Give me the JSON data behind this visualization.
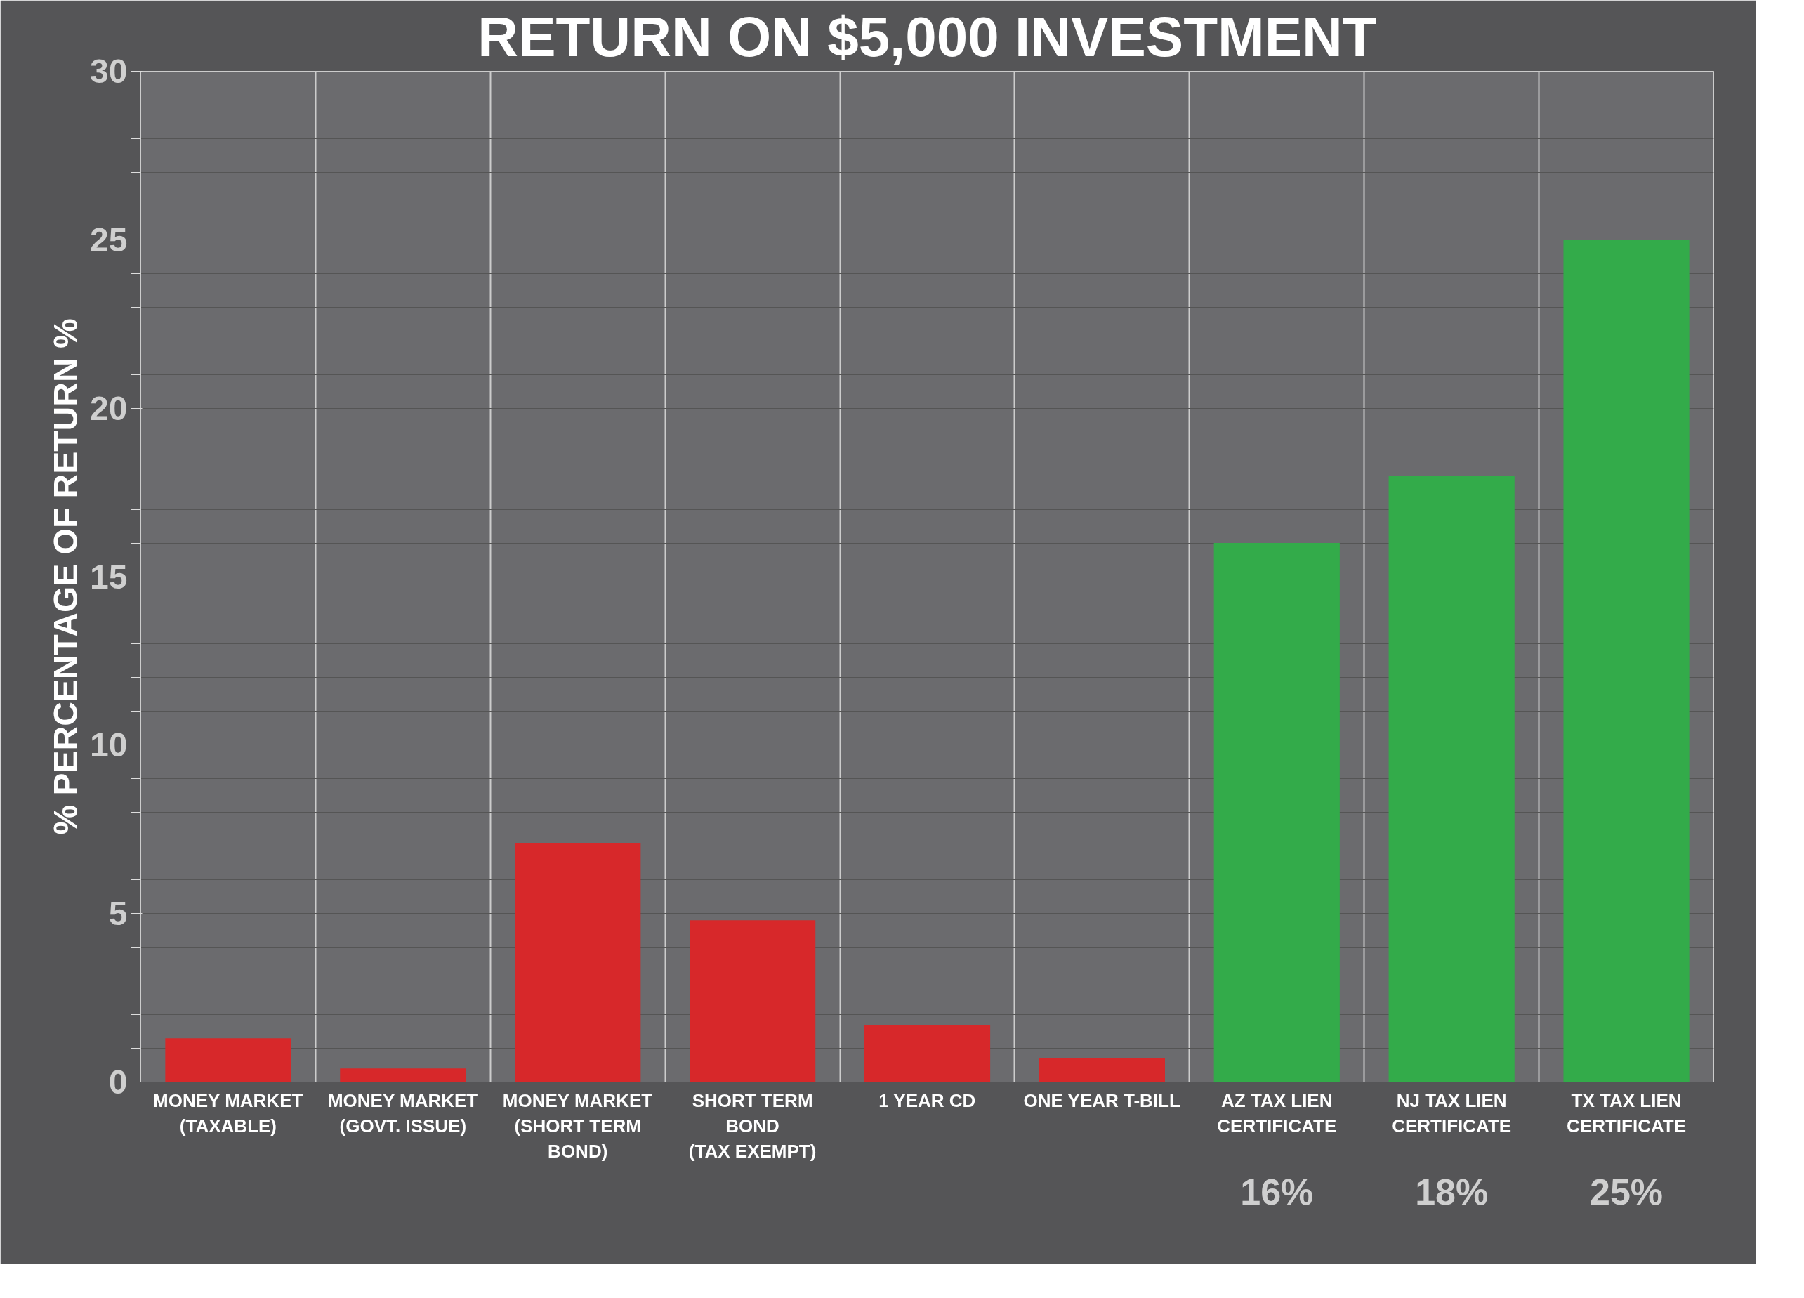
{
  "chart_data": {
    "type": "bar",
    "title": "RETURN ON $5,000 INVESTMENT",
    "ylabel": "% PERCENTAGE OF RETURN %",
    "categories": [
      "MONEY MARKET\n(TAXABLE)",
      "MONEY MARKET\n(GOVT. ISSUE)",
      "MONEY MARKET\n(SHORT TERM\nBOND)",
      "SHORT TERM\nBOND\n(TAX EXEMPT)",
      "1 YEAR CD",
      "ONE YEAR T-BILL",
      "AZ TAX LIEN\nCERTIFICATE",
      "NJ TAX LIEN\nCERTIFICATE",
      "TX TAX LIEN\nCERTIFICATE"
    ],
    "values": [
      1.3,
      0.4,
      7.1,
      4.8,
      1.7,
      0.7,
      16,
      18,
      25
    ],
    "colors": [
      "#d7282a",
      "#d7282a",
      "#d7282a",
      "#d7282a",
      "#d7282a",
      "#d7282a",
      "#33ab4a",
      "#33ab4a",
      "#33ab4a"
    ],
    "value_labels": [
      null,
      null,
      null,
      null,
      null,
      null,
      "16%",
      "18%",
      "25%"
    ],
    "ylim": [
      0,
      30
    ],
    "yticks": [
      0,
      {
        "value": 1,
        "label": null
      },
      {
        "value": 2,
        "label": null
      },
      {
        "value": 3,
        "label": null
      },
      {
        "value": 4,
        "label": null
      },
      5,
      {
        "value": 6,
        "label": null
      },
      {
        "value": 7,
        "label": null
      },
      {
        "value": 8,
        "label": null
      },
      {
        "value": 9,
        "label": null
      },
      10,
      {
        "value": 11,
        "label": null
      },
      {
        "value": 12,
        "label": null
      },
      {
        "value": 13,
        "label": null
      },
      {
        "value": 14,
        "label": null
      },
      15,
      {
        "value": 16,
        "label": null
      },
      {
        "value": 17,
        "label": null
      },
      {
        "value": 18,
        "label": null
      },
      {
        "value": 19,
        "label": null
      },
      20,
      {
        "value": 21,
        "label": null
      },
      {
        "value": 22,
        "label": null
      },
      {
        "value": 23,
        "label": null
      },
      {
        "value": 24,
        "label": null
      },
      25,
      {
        "value": 26,
        "label": null
      },
      {
        "value": 27,
        "label": null
      },
      {
        "value": 28,
        "label": null
      },
      {
        "value": 29,
        "label": null
      },
      30
    ],
    "grid": true
  }
}
